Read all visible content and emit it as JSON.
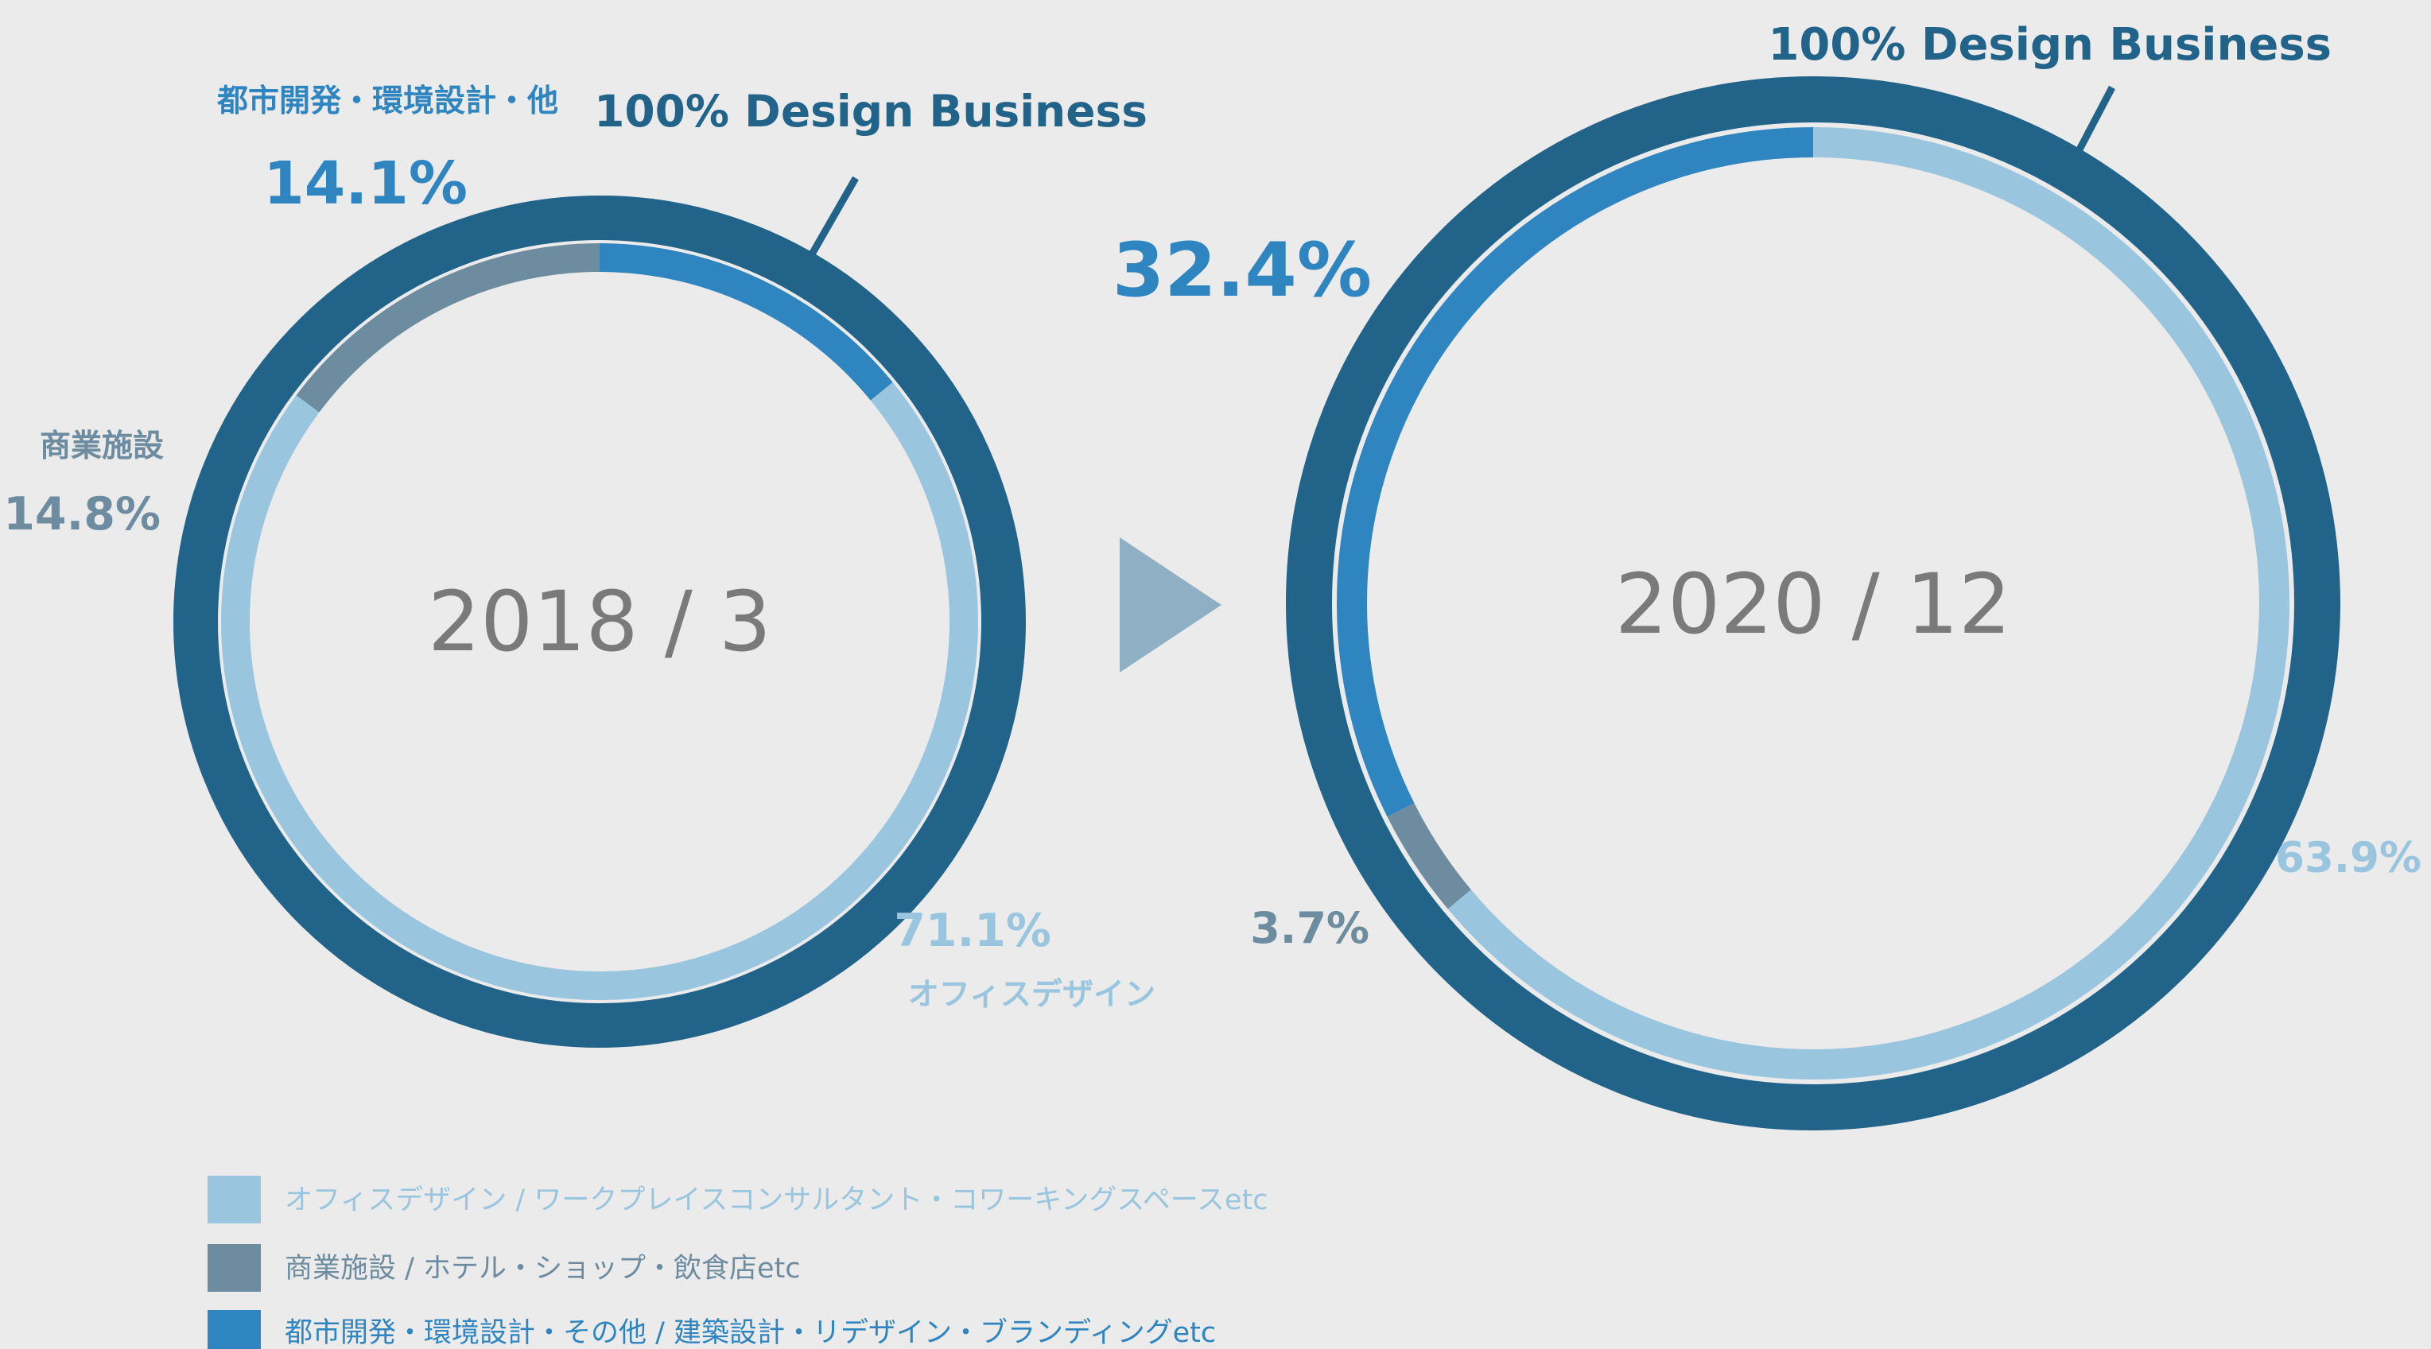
{
  "colors": {
    "office": "#99c5df",
    "commercial": "#6e8c9f",
    "urban": "#2e85bf",
    "outer": "#22638a",
    "arrow": "#8eafc4",
    "center_text": "#7a7a7a",
    "background": "#ebebeb"
  },
  "arrow": {
    "icon": "play-triangle-icon"
  },
  "chart_data": [
    {
      "type": "pie",
      "center_label": "2018 / 3",
      "outer_label": "100% Design Business",
      "series": [
        {
          "key": "urban",
          "name": "都市開発・環境設計・他",
          "value": 14.1,
          "label": "14.1%"
        },
        {
          "key": "office",
          "name": "オフィスデザイン",
          "value": 71.1,
          "label": "71.1%"
        },
        {
          "key": "commercial",
          "name": "商業施設",
          "value": 14.8,
          "label": "14.8%"
        }
      ]
    },
    {
      "type": "pie",
      "center_label": "2020 / 12",
      "outer_label": "100% Design Business",
      "series": [
        {
          "key": "office",
          "value": 63.9,
          "label": "63.9%"
        },
        {
          "key": "commercial",
          "value": 3.7,
          "label": "3.7%"
        },
        {
          "key": "urban",
          "value": 32.4,
          "label": "32.4%"
        }
      ]
    }
  ],
  "legend": [
    {
      "key": "office",
      "label": "オフィスデザイン / ワークプレイスコンサルタント・コワーキングスペースetc"
    },
    {
      "key": "commercial",
      "label": "商業施設 / ホテル・ショップ・飲食店etc"
    },
    {
      "key": "urban",
      "label": "都市開発・環境設計・その他 / 建築設計・リデザイン・ブランディングetc"
    }
  ]
}
